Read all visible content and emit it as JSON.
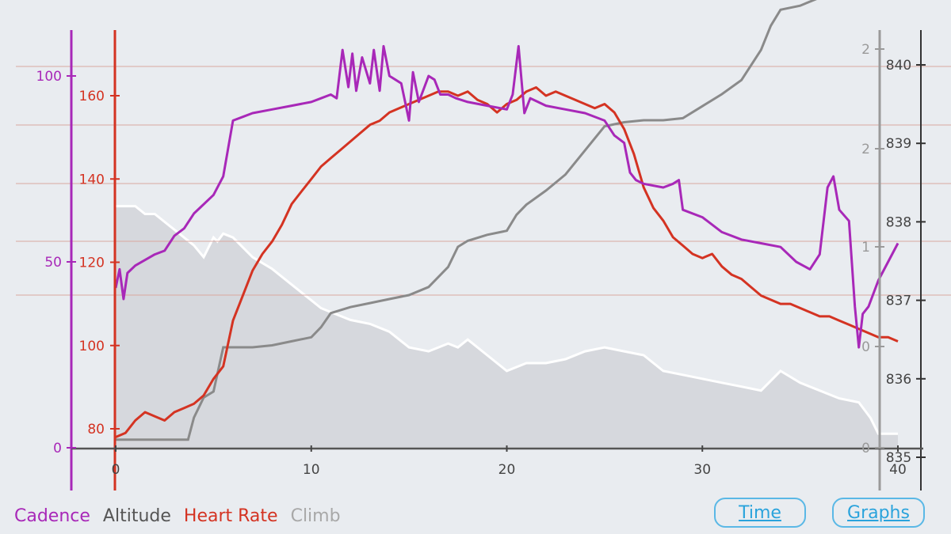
{
  "colors": {
    "cadence": "#a828b8",
    "heart_rate": "#d43322",
    "altitude": "#8a8a8a",
    "climb_line": "#ffffff",
    "climb_fill": "#d6d8dd",
    "grid": "#d9a7a0",
    "axis": "#555555",
    "background": "#e9ecf0"
  },
  "legend": {
    "cadence": "Cadence",
    "altitude": "Altitude",
    "heart_rate": "Heart Rate",
    "climb": "Climb"
  },
  "buttons": {
    "time": "Time",
    "graphs": "Graphs"
  },
  "chart_data": {
    "type": "line",
    "x_ticks": [
      "0",
      "10",
      "20",
      "30",
      "40"
    ],
    "xlim": [
      0,
      40
    ],
    "cadence_axis": {
      "ticks": [
        "0",
        "50",
        "100"
      ],
      "ylim": [
        0,
        112
      ]
    },
    "heart_rate_axis": {
      "ticks": [
        "80",
        "100",
        "120",
        "140",
        "160"
      ],
      "ylim": [
        76,
        168
      ]
    },
    "climb_axis": {
      "ticks": [
        "0",
        "1",
        "2",
        "2"
      ],
      "ylim": [
        0,
        2.35
      ]
    },
    "altitude_axis": {
      "ticks": [
        "835",
        "836",
        "837",
        "838",
        "839",
        "840"
      ],
      "ylim": [
        834.9,
        840.3
      ]
    },
    "series": [
      {
        "name": "Cadence",
        "axis": "cadence",
        "x": [
          0,
          0.2,
          0.4,
          0.6,
          1,
          2,
          2.5,
          3,
          3.5,
          4,
          4.4,
          5,
          5.5,
          6,
          6.5,
          7,
          8,
          9,
          10,
          10.5,
          11,
          11.3,
          11.6,
          11.9,
          12.1,
          12.3,
          12.6,
          13,
          13.2,
          13.5,
          13.7,
          14,
          14.3,
          14.6,
          15,
          15.2,
          15.5,
          16,
          16.3,
          16.6,
          17,
          17.4,
          18,
          19,
          20,
          20.3,
          20.6,
          20.9,
          21.2,
          21.6,
          22,
          23,
          24,
          25,
          25.5,
          26,
          26.3,
          26.6,
          27,
          28,
          28.5,
          28.8,
          29,
          30,
          31,
          32,
          33,
          34,
          34.8,
          35.5,
          36,
          36.4,
          36.7,
          37,
          37.5,
          37.8,
          38,
          38.2,
          38.5,
          39,
          40
        ],
        "y": [
          43,
          48,
          40,
          47,
          49,
          52,
          53,
          57,
          59,
          63,
          65,
          68,
          73,
          88,
          89,
          90,
          91,
          92,
          93,
          94,
          95,
          94,
          107,
          97,
          106,
          96,
          105,
          98,
          107,
          96,
          108,
          100,
          99,
          98,
          88,
          101,
          93,
          100,
          99,
          95,
          95,
          94,
          93,
          92,
          91,
          95,
          108,
          90,
          94,
          93,
          92,
          91,
          90,
          88,
          84,
          82,
          74,
          72,
          71,
          70,
          71,
          72,
          64,
          62,
          58,
          56,
          55,
          54,
          50,
          48,
          52,
          70,
          73,
          64,
          61,
          38,
          27,
          36,
          38,
          45,
          55
        ]
      },
      {
        "name": "Heart Rate",
        "axis": "heart_rate",
        "x": [
          0,
          0.5,
          1,
          1.5,
          2,
          2.5,
          3,
          3.5,
          4,
          4.5,
          5,
          5.5,
          6,
          6.5,
          7,
          7.5,
          8,
          8.5,
          9,
          9.5,
          10,
          10.5,
          11,
          11.5,
          12,
          12.5,
          13,
          13.5,
          14,
          14.5,
          15,
          15.5,
          16,
          16.5,
          17,
          17.5,
          18,
          18.5,
          19,
          19.5,
          20,
          20.5,
          21,
          21.5,
          22,
          22.5,
          23,
          23.5,
          24,
          24.5,
          25,
          25.5,
          26,
          26.5,
          27,
          27.5,
          28,
          28.5,
          29,
          29.5,
          30,
          30.5,
          31,
          31.5,
          32,
          32.5,
          33,
          33.5,
          34,
          34.5,
          35,
          35.5,
          36,
          36.5,
          37,
          37.5,
          38,
          38.5,
          39,
          39.5,
          40
        ],
        "y": [
          78,
          79,
          82,
          84,
          83,
          82,
          84,
          85,
          86,
          88,
          92,
          95,
          106,
          112,
          118,
          122,
          125,
          129,
          134,
          137,
          140,
          143,
          145,
          147,
          149,
          151,
          153,
          154,
          156,
          157,
          158,
          159,
          160,
          161,
          161,
          160,
          161,
          159,
          158,
          156,
          158,
          159,
          161,
          162,
          160,
          161,
          160,
          159,
          158,
          157,
          158,
          156,
          152,
          146,
          138,
          133,
          130,
          126,
          124,
          122,
          121,
          122,
          119,
          117,
          116,
          114,
          112,
          111,
          110,
          110,
          109,
          108,
          107,
          107,
          106,
          105,
          104,
          103,
          102,
          102,
          101
        ]
      },
      {
        "name": "Climb",
        "axis": "climb",
        "x": [
          0,
          3.7,
          4,
          4.5,
          5,
          5.5,
          6,
          7,
          8,
          9,
          10,
          10.5,
          11,
          12,
          13,
          14,
          15,
          16,
          17,
          17.5,
          18,
          19,
          20,
          20.5,
          21,
          22,
          23,
          24,
          25,
          26,
          27,
          28,
          29,
          30,
          31,
          32,
          33,
          33.5,
          34,
          35,
          36,
          37,
          38,
          38.6,
          39,
          40
        ],
        "y": [
          0.04,
          0.04,
          0.15,
          0.25,
          0.28,
          0.5,
          0.5,
          0.5,
          0.51,
          0.53,
          0.55,
          0.6,
          0.67,
          0.7,
          0.72,
          0.74,
          0.76,
          0.8,
          0.9,
          1.0,
          1.03,
          1.06,
          1.08,
          1.16,
          1.21,
          1.28,
          1.36,
          1.48,
          1.6,
          1.62,
          1.63,
          1.63,
          1.64,
          1.7,
          1.76,
          1.83,
          1.98,
          2.1,
          2.18,
          2.2,
          2.24,
          2.27,
          2.28,
          2.28,
          2.28,
          2.28
        ]
      },
      {
        "name": "Altitude",
        "axis": "altitude",
        "x": [
          0,
          1,
          1.5,
          2,
          3,
          4,
          4.5,
          5,
          5.2,
          5.5,
          6,
          7,
          8,
          9,
          10,
          10.5,
          11,
          12,
          13,
          14,
          15,
          16,
          17,
          17.5,
          18,
          19,
          20,
          21,
          22,
          23,
          24,
          25,
          26,
          27,
          28,
          29,
          30,
          31,
          32,
          33,
          34,
          35,
          36,
          37,
          38,
          38.6,
          39,
          40
        ],
        "y": [
          838.2,
          838.2,
          838.1,
          838.1,
          837.9,
          837.7,
          837.55,
          837.8,
          837.75,
          837.85,
          837.8,
          837.55,
          837.4,
          837.2,
          837.0,
          836.9,
          836.85,
          836.75,
          836.7,
          836.6,
          836.4,
          836.35,
          836.45,
          836.4,
          836.5,
          836.3,
          836.1,
          836.2,
          836.2,
          836.25,
          836.35,
          836.4,
          836.35,
          836.3,
          836.1,
          836.05,
          836.0,
          835.95,
          835.9,
          835.85,
          836.1,
          835.95,
          835.85,
          835.75,
          835.7,
          835.5,
          835.3,
          835.3
        ]
      }
    ],
    "climb_fill_under": true,
    "grid": true
  }
}
